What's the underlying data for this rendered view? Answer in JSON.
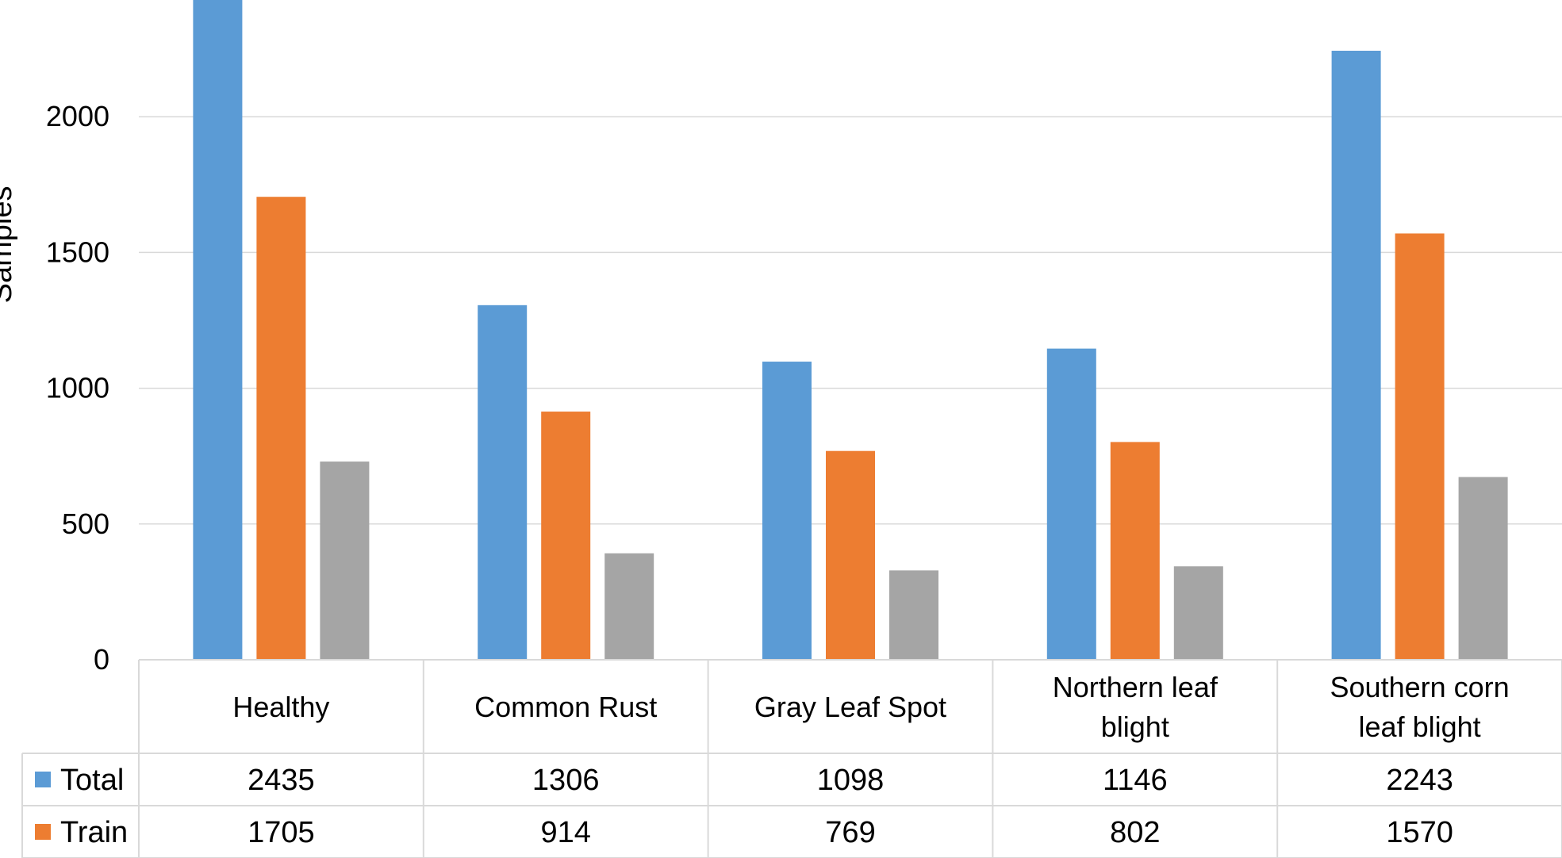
{
  "chart_data": {
    "type": "bar",
    "title": "",
    "xlabel": "",
    "ylabel": "Samples",
    "ylim": [
      0,
      2400
    ],
    "yticks": [
      0,
      500,
      1000,
      1500,
      2000
    ],
    "grid": true,
    "legend": "data-table-left",
    "categories": [
      [
        "Healthy"
      ],
      [
        "Common Rust"
      ],
      [
        "Gray Leaf Spot"
      ],
      [
        "Northern leaf",
        "blight"
      ],
      [
        "Southern corn",
        "leaf blight"
      ]
    ],
    "series": [
      {
        "name": "Total",
        "color": "#5B9BD5",
        "values": [
          2435,
          1306,
          1098,
          1146,
          2243
        ],
        "in_table": true
      },
      {
        "name": "Train",
        "color": "#ED7D31",
        "values": [
          1705,
          914,
          769,
          802,
          1570
        ],
        "in_table": true
      },
      {
        "color": "#A5A5A5",
        "values": [
          730,
          392,
          329,
          344,
          673
        ],
        "in_table": false
      }
    ]
  }
}
